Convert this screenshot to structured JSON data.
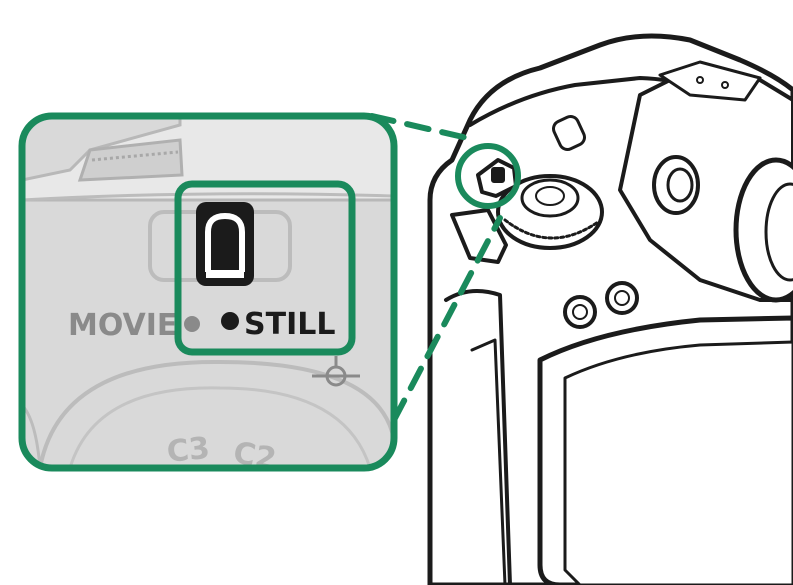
{
  "callout": {
    "mode_left_label": "MOVIE",
    "mode_right_label": "STILL",
    "dial_mark_left": "C3",
    "dial_mark_right": "C2"
  },
  "colors": {
    "highlight": "#1a8a5c",
    "line": "#1b1b1b",
    "body_fill": "#ffffff",
    "zoom_bg": "#d9d9d9",
    "zoom_text": "#8a8a8a"
  }
}
